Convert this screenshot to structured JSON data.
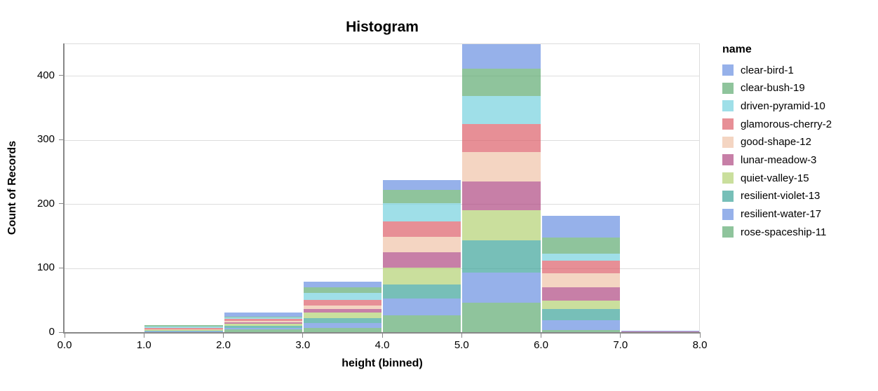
{
  "title": "Histogram",
  "y_axis": {
    "title": "Count of Records",
    "tick_labels": [
      "0",
      "100",
      "200",
      "300",
      "400"
    ]
  },
  "x_axis": {
    "title": "height (binned)",
    "tick_labels": [
      "0.0",
      "1.0",
      "2.0",
      "3.0",
      "4.0",
      "5.0",
      "6.0",
      "7.0",
      "8.0"
    ]
  },
  "legend": {
    "title": "name",
    "items": [
      {
        "label": "clear-bird-1",
        "color": "#6a90e1"
      },
      {
        "label": "clear-bush-19",
        "color": "#5fab72"
      },
      {
        "label": "driven-pyramid-10",
        "color": "#76d1de"
      },
      {
        "label": "glamorous-cherry-2",
        "color": "#dd5f69"
      },
      {
        "label": "good-shape-12",
        "color": "#efc3a8"
      },
      {
        "label": "lunar-meadow-3",
        "color": "#af4881"
      },
      {
        "label": "quiet-valley-15",
        "color": "#b3d174"
      },
      {
        "label": "resilient-violet-13",
        "color": "#3da49a"
      },
      {
        "label": "resilient-water-17",
        "color": "#6a90e1"
      },
      {
        "label": "rose-spaceship-11",
        "color": "#5fab72"
      }
    ]
  },
  "style": {
    "axis_color": "#888888",
    "grid_color": "#dddddd",
    "view_border_color": "#dddddd",
    "text_color": "#000000",
    "fill_opacity": 0.7
  },
  "chart_data": {
    "type": "bar",
    "subtype": "stacked-histogram",
    "title": "Histogram",
    "xlabel": "height (binned)",
    "ylabel": "Count of Records",
    "legend_title": "name",
    "legend_position": "right",
    "grid": true,
    "xlim": [
      0,
      8
    ],
    "ylim": [
      0,
      450
    ],
    "x_ticks": [
      0,
      1,
      2,
      3,
      4,
      5,
      6,
      7,
      8
    ],
    "y_ticks": [
      0,
      100,
      200,
      300,
      400
    ],
    "x_bin_edges": [
      0,
      1,
      2,
      3,
      4,
      5,
      6,
      7,
      8
    ],
    "stack_order": "first-series-on-top",
    "bin_totals": [
      1,
      12,
      32,
      80,
      238,
      450,
      182,
      3
    ],
    "series": [
      {
        "name": "clear-bird-1",
        "color": "#6a90e1",
        "values": [
          0,
          0,
          7,
          9,
          15,
          38,
          33,
          1
        ]
      },
      {
        "name": "clear-bush-19",
        "color": "#5fab72",
        "values": [
          0,
          2,
          1,
          9,
          21,
          43,
          26,
          0
        ]
      },
      {
        "name": "driven-pyramid-10",
        "color": "#76d1de",
        "values": [
          0,
          2,
          2,
          11,
          28,
          43,
          11,
          0
        ]
      },
      {
        "name": "glamorous-cherry-2",
        "color": "#dd5f69",
        "values": [
          0,
          2,
          3,
          8,
          24,
          44,
          19,
          0
        ]
      },
      {
        "name": "good-shape-12",
        "color": "#efc3a8",
        "values": [
          0,
          1,
          3,
          6,
          24,
          46,
          22,
          0
        ]
      },
      {
        "name": "lunar-meadow-3",
        "color": "#af4881",
        "values": [
          0,
          0,
          2,
          5,
          24,
          45,
          21,
          1
        ]
      },
      {
        "name": "quiet-valley-15",
        "color": "#b3d174",
        "values": [
          1,
          2,
          3,
          9,
          27,
          47,
          13,
          0
        ]
      },
      {
        "name": "resilient-violet-13",
        "color": "#3da49a",
        "values": [
          0,
          1,
          3,
          8,
          22,
          50,
          17,
          0
        ]
      },
      {
        "name": "resilient-water-17",
        "color": "#6a90e1",
        "values": [
          0,
          1,
          3,
          7,
          26,
          47,
          16,
          1
        ]
      },
      {
        "name": "rose-spaceship-11",
        "color": "#5fab72",
        "values": [
          0,
          1,
          5,
          8,
          27,
          47,
          4,
          0
        ]
      }
    ]
  }
}
